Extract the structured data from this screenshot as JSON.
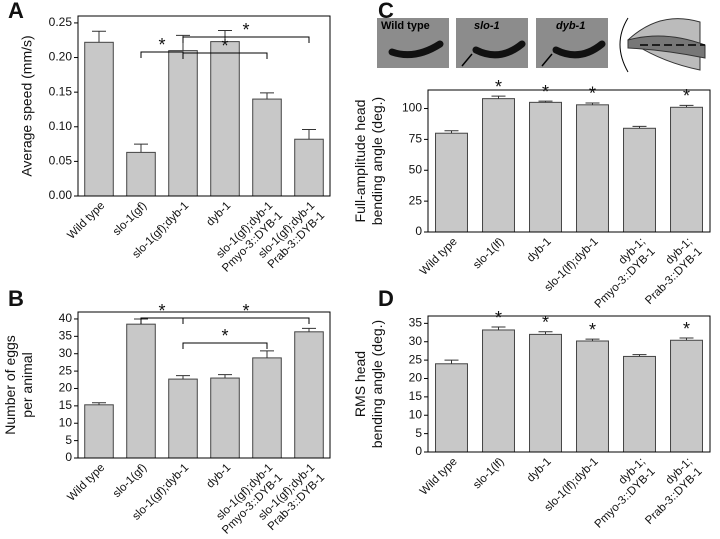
{
  "chart_data": [
    {
      "type": "bar",
      "panel": "A",
      "ylabel": [
        "Average speed (mm/s)"
      ],
      "categories": [
        [
          "Wild type"
        ],
        [
          "slo-1(gf)"
        ],
        [
          "slo-1(gf);dyb-1"
        ],
        [
          "dyb-1"
        ],
        [
          "slo-1(gf);dyb-1",
          "Pmyo-3::DYB-1"
        ],
        [
          "slo-1(gf);dyb-1",
          "Prab-3::DYB-1"
        ]
      ],
      "values": [
        0.222,
        0.063,
        0.21,
        0.223,
        0.14,
        0.082
      ],
      "errors": [
        0.016,
        0.012,
        0.022,
        0.016,
        0.009,
        0.014
      ],
      "color": "#c8c8c8",
      "ylim": [
        0,
        0.26
      ],
      "yticks": [
        {
          "value": 0,
          "label": "0.00"
        },
        {
          "value": 0.05,
          "label": "0.05"
        },
        {
          "value": 0.1,
          "label": "0.10"
        },
        {
          "value": 0.15,
          "label": "0.15"
        },
        {
          "value": 0.2,
          "label": "0.20"
        },
        {
          "value": 0.25,
          "label": "0.25"
        }
      ],
      "annotations": [
        "*",
        "*",
        "*"
      ]
    },
    {
      "type": "bar",
      "panel": "B",
      "ylabel": [
        "Number of eggs",
        "per animal"
      ],
      "categories": [
        [
          "Wild type"
        ],
        [
          "slo-1(gf)"
        ],
        [
          "slo-1(gf);dyb-1"
        ],
        [
          "dyb-1"
        ],
        [
          "slo-1(gf);dyb-1",
          "Pmyo-3::DYB-1"
        ],
        [
          "slo-1(gf);dyb-1",
          "Prab-3::DYB-1"
        ]
      ],
      "values": [
        15.3,
        38.5,
        22.7,
        23,
        28.8,
        36.3
      ],
      "errors": [
        0.6,
        1.5,
        1,
        1,
        2,
        1
      ],
      "color": "#c8c8c8",
      "ylim": [
        0,
        42
      ],
      "yticks": [
        0,
        5,
        10,
        15,
        20,
        25,
        30,
        35,
        40
      ],
      "annotations": [
        "*",
        "*",
        "*"
      ]
    },
    {
      "type": "bar",
      "panel": "C",
      "ylabel": [
        "Full-amplitude head",
        "bending angle (deg.)"
      ],
      "categories": [
        [
          "Wild type"
        ],
        [
          "slo-1(lf)"
        ],
        [
          "dyb-1"
        ],
        [
          "slo-1(lf);dyb-1"
        ],
        [
          "dyb-1;",
          "Pmyo-3::DYB-1"
        ],
        [
          "dyb-1;",
          "Prab-3::DYB-1"
        ]
      ],
      "values": [
        80,
        108,
        105,
        103,
        84,
        101
      ],
      "errors": [
        2,
        2,
        1,
        1.5,
        1.5,
        1.5
      ],
      "color": "#c8c8c8",
      "ylim": [
        0,
        115
      ],
      "yticks": [
        0,
        25,
        50,
        75,
        100
      ],
      "annotations": [
        "*",
        "*",
        "*",
        "*"
      ]
    },
    {
      "type": "bar",
      "panel": "D",
      "ylabel": [
        "RMS head",
        "bending angle (deg.)"
      ],
      "categories": [
        [
          "Wild type"
        ],
        [
          "slo-1(lf)"
        ],
        [
          "dyb-1"
        ],
        [
          "slo-1(lf);dyb-1"
        ],
        [
          "dyb-1;",
          "Pmyo-3::DYB-1"
        ],
        [
          "dyb-1;",
          "Prab-3::DYB-1"
        ]
      ],
      "values": [
        24,
        33.2,
        32,
        30.2,
        26,
        30.4
      ],
      "errors": [
        1,
        0.8,
        0.7,
        0.5,
        0.5,
        0.6
      ],
      "color": "#c8c8c8",
      "ylim": [
        0,
        37
      ],
      "yticks": [
        0,
        5,
        10,
        15,
        20,
        25,
        30,
        35
      ],
      "annotations": [
        "*",
        "*",
        "*",
        "*"
      ]
    }
  ],
  "images": [
    "Wild type",
    "slo-1",
    "dyb-1"
  ]
}
